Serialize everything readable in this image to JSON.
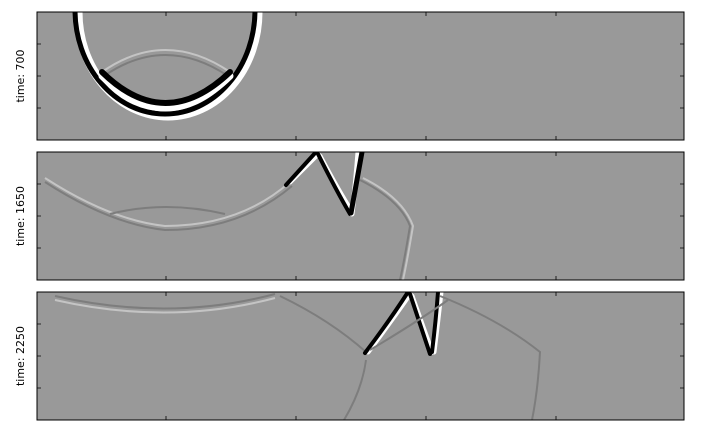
{
  "panels": [
    {
      "label": "time: 700"
    },
    {
      "label": "time: 1650"
    },
    {
      "label": "time: 2250"
    }
  ]
}
